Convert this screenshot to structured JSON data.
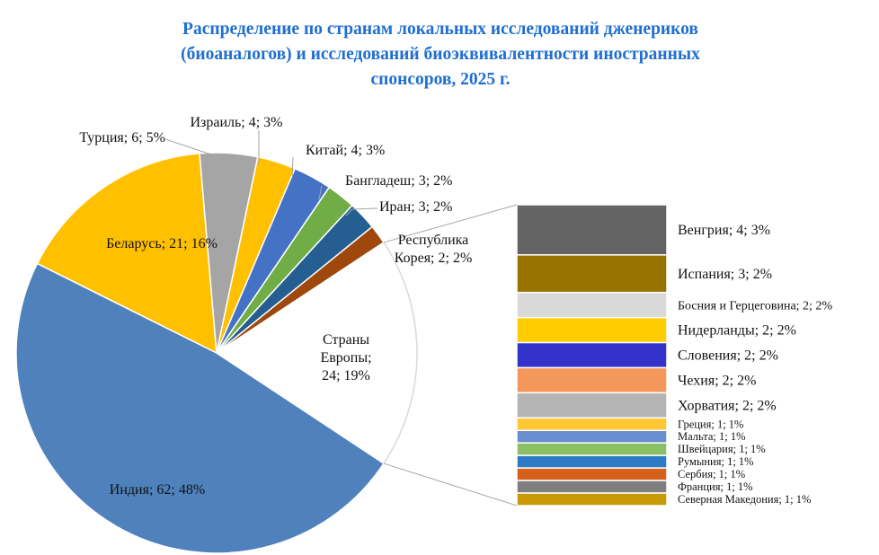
{
  "chart_data": {
    "type": "pie-of-bar",
    "title_lines": [
      "Распределение по странам локальных исследований дженериков",
      "(биоаналогов) и исследований биоэквивалентности иностранных",
      "спонсоров, 2025 г."
    ],
    "pie": [
      {
        "name": "Индия",
        "value": 62,
        "percent": "48%",
        "label": "Индия; 62; 48%",
        "color": "#4f81bd"
      },
      {
        "name": "Беларусь",
        "value": 21,
        "percent": "16%",
        "label": "Беларусь; 21; 16%",
        "color": "#ffc000"
      },
      {
        "name": "Турция",
        "value": 6,
        "percent": "5%",
        "label": "Турция; 6; 5%",
        "color": "#a5a5a5"
      },
      {
        "name": "Израиль",
        "value": 4,
        "percent": "3%",
        "label": "Израиль; 4; 3%",
        "color": "#ffc000"
      },
      {
        "name": "Китай",
        "value": 4,
        "percent": "3%",
        "label": "Китай; 4; 3%",
        "color": "#4472c4"
      },
      {
        "name": "Бангладеш",
        "value": 3,
        "percent": "2%",
        "label": "Бангладеш; 3; 2%",
        "color": "#70ad47"
      },
      {
        "name": "Иран",
        "value": 3,
        "percent": "2%",
        "label": "Иран; 3; 2%",
        "color": "#255e91"
      },
      {
        "name": "Республика Корея",
        "value": 2,
        "percent": "2%",
        "label_lines": [
          "Республика",
          "Корея; 2; 2%"
        ],
        "color": "#9e480e"
      },
      {
        "name": "Страны Европы",
        "value": 24,
        "percent": "19%",
        "label_lines": [
          "Страны",
          "Европы;",
          "24; 19%"
        ],
        "color": "#ffffff"
      }
    ],
    "bar": [
      {
        "name": "Венгрия",
        "value": 4,
        "label": "Венгрия; 4; 3%",
        "color": "#636363"
      },
      {
        "name": "Испания",
        "value": 3,
        "label": "Испания; 3; 2%",
        "color": "#997300"
      },
      {
        "name": "Босния и Герцеговина",
        "value": 2,
        "label": "Босния и Герцеговина; 2; 2%",
        "color": "#d9d9d9"
      },
      {
        "name": "Нидерланды",
        "value": 2,
        "label": "Нидерланды; 2; 2%",
        "color": "#ffcc00"
      },
      {
        "name": "Словения",
        "value": 2,
        "label": "Словения; 2; 2%",
        "color": "#3333cc"
      },
      {
        "name": "Чехия",
        "value": 2,
        "label": "Чехия; 2; 2%",
        "color": "#f4975a"
      },
      {
        "name": "Хорватия",
        "value": 2,
        "label": "Хорватия; 2; 2%",
        "color": "#b4b4b4"
      },
      {
        "name": "Греция",
        "value": 1,
        "label": "Греция; 1; 1%",
        "color": "#ffc832"
      },
      {
        "name": "Мальта",
        "value": 1,
        "label": "Мальта; 1; 1%",
        "color": "#6a8fd0"
      },
      {
        "name": "Швейцария",
        "value": 1,
        "label": "Швейцария; 1; 1%",
        "color": "#8bc064"
      },
      {
        "name": "Румыния",
        "value": 1,
        "label": "Румыния; 1; 1%",
        "color": "#2e7bc5"
      },
      {
        "name": "Сербия",
        "value": 1,
        "label": "Сербия; 1; 1%",
        "color": "#d4601a"
      },
      {
        "name": "Франция",
        "value": 1,
        "label": "Франция; 1; 1%",
        "color": "#7f7f7f"
      },
      {
        "name": "Северная Македония",
        "value": 1,
        "label": "Северная Македония; 1; 1%",
        "color": "#c99a06"
      }
    ],
    "legend": "none"
  }
}
